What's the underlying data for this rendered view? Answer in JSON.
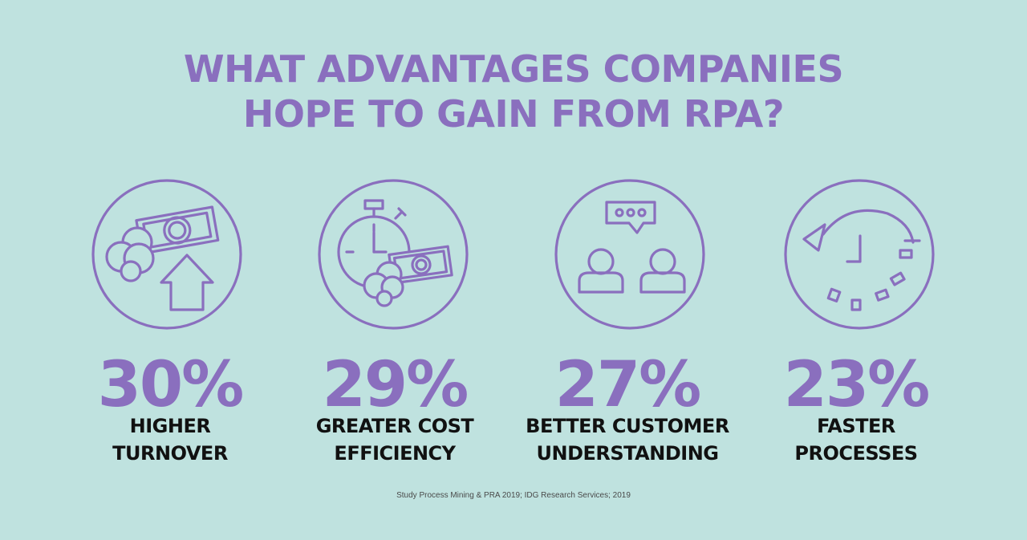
{
  "title": {
    "line1": "WHAT ADVANTAGES COMPANIES",
    "line2": "HOPE TO GAIN FROM RPA?"
  },
  "colors": {
    "background": "#bfe2df",
    "accent": "#8a6fbe",
    "label": "#111111"
  },
  "stats": [
    {
      "icon": "money-arrow-up-icon",
      "percent": "30%",
      "label_line1": "HIGHER",
      "label_line2": "TURNOVER"
    },
    {
      "icon": "stopwatch-money-icon",
      "percent": "29%",
      "label_line1": "GREATER COST",
      "label_line2": "EFFICIENCY"
    },
    {
      "icon": "people-chat-icon",
      "percent": "27%",
      "label_line1": "BETTER CUSTOMER",
      "label_line2": "UNDERSTANDING"
    },
    {
      "icon": "clock-rewind-icon",
      "percent": "23%",
      "label_line1": "FASTER",
      "label_line2": "PROCESSES"
    }
  ],
  "source": "Study Process Mining & PRA 2019; IDG Research Services; 2019"
}
